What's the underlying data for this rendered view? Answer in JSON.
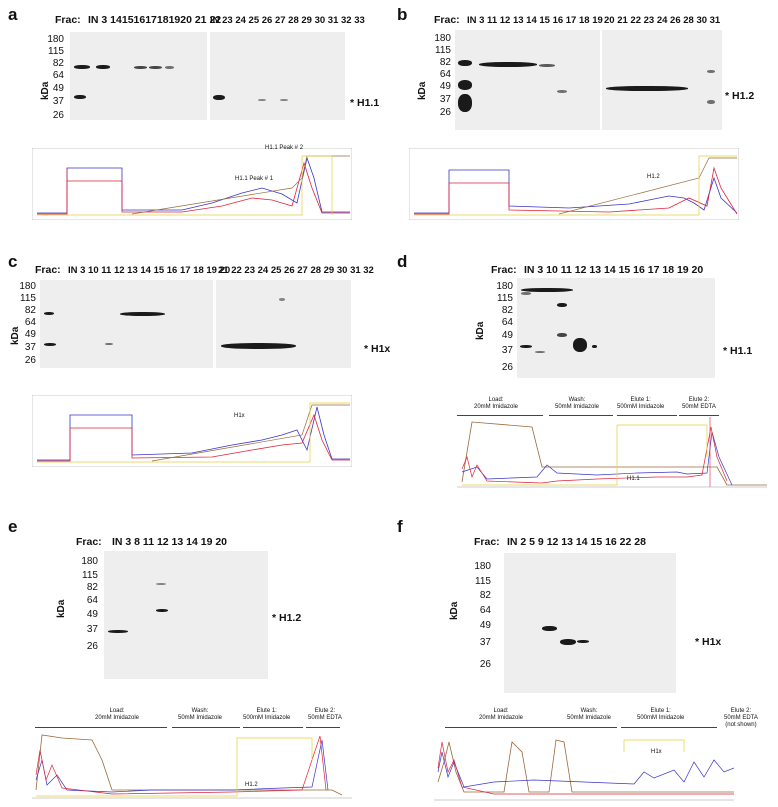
{
  "panels": {
    "a": {
      "label": "a",
      "frac_prefix": "Frac:",
      "lanes_left": "IN  3 14151617181920 21 22",
      "lanes_right": "IN 23 24 25 26 27 28 29 30 31 32 33",
      "mw": [
        "180",
        "115",
        "82",
        "64",
        "49",
        "37",
        "26"
      ],
      "kda": "kDa",
      "marker": "* H1.1",
      "annot": [
        "H1.1 Peak # 2",
        "H1.1 Peak # 1"
      ]
    },
    "b": {
      "label": "b",
      "frac_prefix": "Frac:",
      "lanes_left": "IN  3  11 12 13 14 15 16 17 18 19",
      "lanes_right": "20 21 22 23 24 26 28 30 31",
      "mw": [
        "180",
        "115",
        "82",
        "64",
        "49",
        "37",
        "26"
      ],
      "kda": "kDa",
      "marker": "* H1.2",
      "annot": [
        "H1.2"
      ]
    },
    "c": {
      "label": "c",
      "frac_prefix": "Frac:",
      "lanes_left": "IN  3 10 11 12 13 14 15 16 17 18 19 20",
      "lanes_right": "21 22 23 24 25 26 27 28 29 30 31 32",
      "mw": [
        "180",
        "115",
        "82",
        "64",
        "49",
        "37",
        "26"
      ],
      "kda": "kDa",
      "marker": "* H1x",
      "annot": [
        "H1x"
      ]
    },
    "d": {
      "label": "d",
      "frac_prefix": "Frac:",
      "lanes": "IN  3  10  11 12 13 14 15 16 17 18 19 20",
      "mw": [
        "180",
        "115",
        "82",
        "64",
        "49",
        "37",
        "26"
      ],
      "kda": "kDa",
      "marker": "* H1.1",
      "phases": [
        "Load:\n20mM Imidazole",
        "Wash:\n50mM Imidazole",
        "Elute 1:\n500mM Imidazole",
        "Elute 2:\n50mM EDTA"
      ],
      "annot": [
        "H1.1"
      ]
    },
    "e": {
      "label": "e",
      "frac_prefix": "Frac:",
      "lanes": "IN  3  8  11  12  13  14  19  20",
      "mw": [
        "180",
        "115",
        "82",
        "64",
        "49",
        "37",
        "26"
      ],
      "kda": "kDa",
      "marker": "* H1.2",
      "phases": [
        "Load:\n20mM Imidazole",
        "Wash:\n50mM Imidazole",
        "Elute 1:\n500mM Imidazole",
        "Elute 2:\n50mM EDTA"
      ],
      "annot": [
        "H1.2"
      ]
    },
    "f": {
      "label": "f",
      "frac_prefix": "Frac:",
      "lanes": "IN  2  5  9  12 13 14  15  16  22  28",
      "mw": [
        "180",
        "115",
        "82",
        "64",
        "49",
        "37",
        "26"
      ],
      "kda": "kDa",
      "marker": "* H1x",
      "phases": [
        "Load:\n20mM Imidazole",
        "Wash:\n50mM Imidazole",
        "Elute 1:\n500mM Imidazole",
        "Elute 2:\n50mM EDTA\n(not shown)"
      ],
      "annot": [
        "H1x"
      ]
    }
  },
  "colors": {
    "blot": "#eeeeee",
    "band": "#1a1a1a",
    "trace_blue": "#3a35c8",
    "trace_red": "#e0243a",
    "trace_brown": "#9a6a3a",
    "trace_yellow": "#e6cf3a",
    "trace_green": "#1a8a1a"
  }
}
